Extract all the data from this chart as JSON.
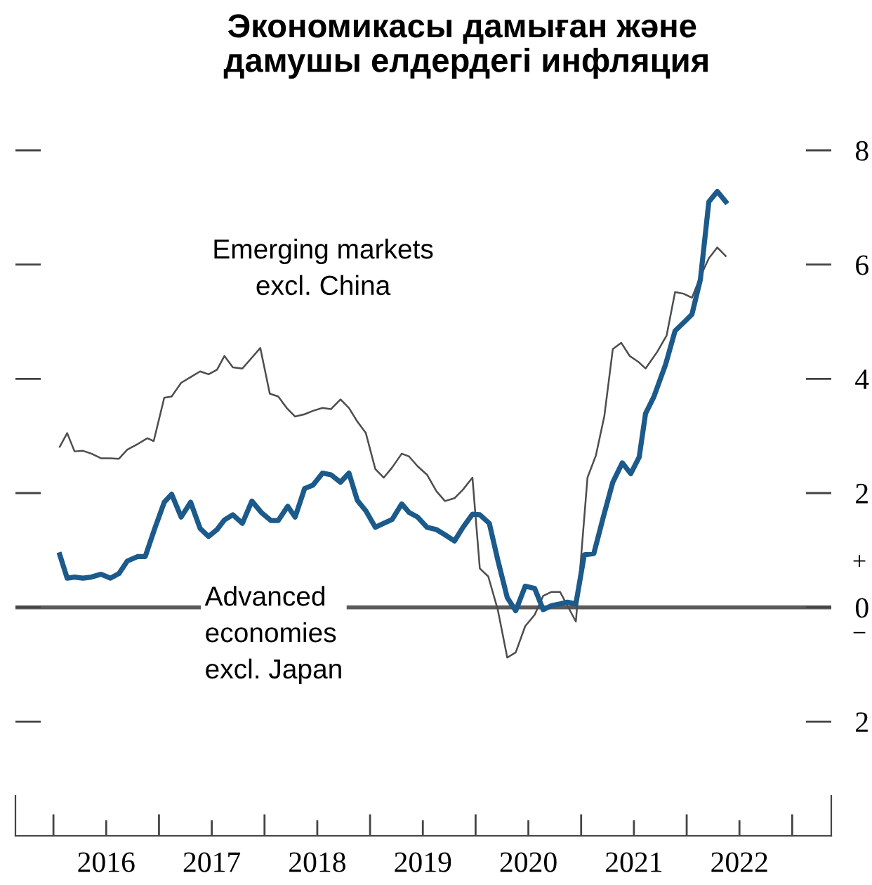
{
  "chart_data": {
    "type": "line",
    "title": "Экономикасы дамыған және\n дамушы елдердегі инфляция",
    "xlim": [
      2015.64,
      2023.37
    ],
    "ylim": [
      -4.0,
      8
    ],
    "xticks": [
      {
        "value": 2016,
        "label": null
      },
      {
        "value": 2016.5,
        "label": "2016"
      },
      {
        "value": 2017,
        "label": null
      },
      {
        "value": 2017.5,
        "label": "2017"
      },
      {
        "value": 2018,
        "label": null
      },
      {
        "value": 2018.5,
        "label": "2018"
      },
      {
        "value": 2019,
        "label": null
      },
      {
        "value": 2019.5,
        "label": "2019"
      },
      {
        "value": 2020,
        "label": null
      },
      {
        "value": 2020.5,
        "label": "2020"
      },
      {
        "value": 2021,
        "label": null
      },
      {
        "value": 2021.5,
        "label": "2021"
      },
      {
        "value": 2022,
        "label": null
      },
      {
        "value": 2022.5,
        "label": "2022"
      },
      {
        "value": 2023,
        "label": null
      }
    ],
    "yticks": [
      {
        "value": -2,
        "label": "2"
      },
      0,
      2,
      4,
      6,
      8
    ],
    "ref_lines": [
      {
        "axis": "y",
        "value": 0,
        "color": "#5a5a5a"
      }
    ],
    "annotations": [
      "+",
      "−"
    ],
    "grid": false,
    "series": [
      {
        "name": "Emerging markets\nexcl. China",
        "color": "#4d4d4d",
        "x": [
          2016.06,
          2016.13,
          2016.2,
          2016.28,
          2016.36,
          2016.45,
          2016.54,
          2016.62,
          2016.7,
          2016.8,
          2016.89,
          2016.95,
          2017.05,
          2017.12,
          2017.21,
          2017.3,
          2017.39,
          2017.47,
          2017.55,
          2017.62,
          2017.7,
          2017.79,
          2017.88,
          2017.96,
          2018.05,
          2018.13,
          2018.21,
          2018.29,
          2018.38,
          2018.46,
          2018.55,
          2018.63,
          2018.72,
          2018.8,
          2018.88,
          2018.96,
          2019.05,
          2019.13,
          2019.21,
          2019.3,
          2019.37,
          2019.45,
          2019.54,
          2019.63,
          2019.71,
          2019.8,
          2019.88,
          2019.97,
          2020.04,
          2020.12,
          2020.21,
          2020.3,
          2020.38,
          2020.47,
          2020.56,
          2020.64,
          2020.72,
          2020.8,
          2020.87,
          2020.95,
          2021.06,
          2021.14,
          2021.22,
          2021.3,
          2021.38,
          2021.46,
          2021.54,
          2021.61,
          2021.72,
          2021.81,
          2021.89,
          2021.97,
          2022.05,
          2022.13,
          2022.21,
          2022.29,
          2022.37
        ],
        "values": [
          2.81,
          3.05,
          2.73,
          2.74,
          2.69,
          2.61,
          2.61,
          2.6,
          2.76,
          2.86,
          2.96,
          2.91,
          3.67,
          3.69,
          3.93,
          4.03,
          4.13,
          4.08,
          4.16,
          4.4,
          4.2,
          4.18,
          4.37,
          4.54,
          3.74,
          3.69,
          3.49,
          3.34,
          3.38,
          3.44,
          3.49,
          3.47,
          3.64,
          3.49,
          3.25,
          3.05,
          2.42,
          2.27,
          2.45,
          2.69,
          2.64,
          2.47,
          2.32,
          2.03,
          1.86,
          1.91,
          2.06,
          2.27,
          0.68,
          0.54,
          -0.04,
          -0.88,
          -0.79,
          -0.33,
          -0.13,
          0.2,
          0.27,
          0.27,
          0.03,
          -0.25,
          2.27,
          2.66,
          3.35,
          4.52,
          4.63,
          4.4,
          4.3,
          4.18,
          4.47,
          4.76,
          5.52,
          5.49,
          5.42,
          5.79,
          6.11,
          6.3,
          6.15
        ]
      },
      {
        "name": "Advanced\neconomies\nexcl. Japan",
        "color": "#1b5a8a",
        "x": [
          2016.06,
          2016.13,
          2016.2,
          2016.28,
          2016.36,
          2016.45,
          2016.54,
          2016.62,
          2016.7,
          2016.8,
          2016.87,
          2016.96,
          2017.05,
          2017.12,
          2017.21,
          2017.3,
          2017.39,
          2017.47,
          2017.55,
          2017.62,
          2017.7,
          2017.79,
          2017.88,
          2017.97,
          2018.06,
          2018.13,
          2018.22,
          2018.29,
          2018.38,
          2018.46,
          2018.55,
          2018.63,
          2018.72,
          2018.8,
          2018.88,
          2018.96,
          2019.05,
          2019.13,
          2019.21,
          2019.3,
          2019.37,
          2019.45,
          2019.54,
          2019.63,
          2019.71,
          2019.8,
          2019.88,
          2019.97,
          2020.04,
          2020.13,
          2020.21,
          2020.3,
          2020.38,
          2020.47,
          2020.56,
          2020.64,
          2020.72,
          2020.8,
          2020.87,
          2020.95,
          2021.03,
          2021.12,
          2021.21,
          2021.3,
          2021.39,
          2021.47,
          2021.55,
          2021.61,
          2021.69,
          2021.8,
          2021.89,
          2021.98,
          2022.05,
          2022.13,
          2022.21,
          2022.29,
          2022.37
        ],
        "values": [
          0.92,
          0.51,
          0.53,
          0.51,
          0.53,
          0.58,
          0.51,
          0.59,
          0.81,
          0.89,
          0.89,
          1.38,
          1.84,
          1.98,
          1.58,
          1.84,
          1.38,
          1.24,
          1.36,
          1.53,
          1.62,
          1.47,
          1.86,
          1.66,
          1.52,
          1.52,
          1.77,
          1.58,
          2.08,
          2.14,
          2.35,
          2.32,
          2.19,
          2.35,
          1.87,
          1.69,
          1.4,
          1.47,
          1.54,
          1.81,
          1.66,
          1.58,
          1.4,
          1.36,
          1.27,
          1.16,
          1.4,
          1.63,
          1.62,
          1.47,
          0.83,
          0.17,
          -0.06,
          0.37,
          0.33,
          -0.04,
          0.03,
          0.06,
          0.09,
          0.06,
          0.92,
          0.94,
          1.58,
          2.19,
          2.53,
          2.34,
          2.63,
          3.39,
          3.69,
          4.25,
          4.84,
          5.0,
          5.13,
          5.74,
          7.1,
          7.28,
          7.1
        ]
      }
    ]
  }
}
